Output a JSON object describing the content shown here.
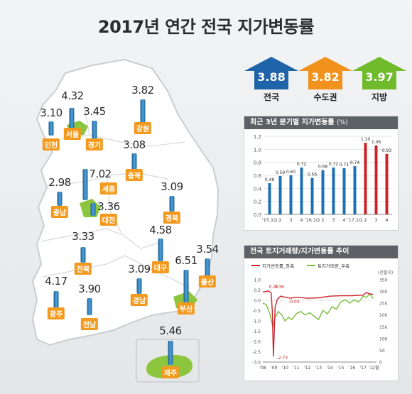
{
  "title": "2017년 연간 전국 지가변동률",
  "summary": [
    {
      "label": "전국",
      "value": "3.88",
      "color": "#1f64a8"
    },
    {
      "label": "수도권",
      "value": "3.82",
      "color": "#f0921c"
    },
    {
      "label": "지방",
      "value": "3.97",
      "color": "#6fbb2b"
    }
  ],
  "regions": [
    {
      "name": "서울",
      "value": "4.32"
    },
    {
      "name": "인천",
      "value": "3.10"
    },
    {
      "name": "경기",
      "value": "3.45"
    },
    {
      "name": "강원",
      "value": "3.82"
    },
    {
      "name": "충북",
      "value": "3.08"
    },
    {
      "name": "세종",
      "value": "7.02"
    },
    {
      "name": "충남",
      "value": "2.98"
    },
    {
      "name": "대전",
      "value": "3.36"
    },
    {
      "name": "경북",
      "value": "3.09"
    },
    {
      "name": "전북",
      "value": "3.33"
    },
    {
      "name": "대구",
      "value": "4.58"
    },
    {
      "name": "울산",
      "value": "3.54"
    },
    {
      "name": "경남",
      "value": "3.09"
    },
    {
      "name": "부산",
      "value": "6.51"
    },
    {
      "name": "광주",
      "value": "4.17"
    },
    {
      "name": "전남",
      "value": "3.90"
    },
    {
      "name": "제주",
      "value": "5.46"
    }
  ],
  "quarterly_panel": {
    "header": "최근 3년 분기별 지가변동률",
    "unit": "(%)"
  },
  "trend_panel": {
    "header": "전국 토지거래량/지가변동률 추이"
  },
  "chart_data": [
    {
      "type": "bar",
      "title": "최근 3년 분기별 지가변동률 (%)",
      "categories": [
        "'15.1Q",
        "2",
        "3",
        "4",
        "'16.1Q",
        "2",
        "3",
        "4",
        "'17.1Q",
        "2",
        "3",
        "4"
      ],
      "values": [
        0.48,
        0.59,
        0.6,
        0.72,
        0.56,
        0.68,
        0.72,
        0.71,
        0.74,
        1.1,
        1.06,
        0.93
      ],
      "value_labels": [
        "0.48",
        "0.59",
        "0.60",
        "0.72",
        "0.56",
        "0.68",
        "0.72",
        "0.71",
        "0.74",
        "1.10",
        "1.06",
        "0.93"
      ],
      "bar_colors": [
        "#1f6fb5",
        "#1f6fb5",
        "#1f6fb5",
        "#1f6fb5",
        "#1f6fb5",
        "#1f6fb5",
        "#1f6fb5",
        "#1f6fb5",
        "#1f6fb5",
        "#c8242b",
        "#c8242b",
        "#c8242b"
      ],
      "ylim": [
        0,
        1.2
      ],
      "yticks": [
        "0.0",
        "0.2",
        "0.4",
        "0.6",
        "0.8",
        "1.0",
        "1.2"
      ],
      "grid": true
    },
    {
      "type": "line",
      "title": "전국 토지거래량/지가변동률 추이",
      "series": [
        {
          "name": "지가변동률_좌축",
          "color": "#c8242b",
          "axis": "left",
          "x": [
            2008.0,
            2008.5,
            2008.75,
            2008.85,
            2008.95,
            2009.1,
            2009.3,
            2009.6,
            2010.0,
            2010.5,
            2011.0,
            2012.0,
            2013.0,
            2014.0,
            2015.0,
            2016.0,
            2016.5,
            2017.0,
            2017.3,
            2017.5,
            2017.7,
            2017.9
          ],
          "y": [
            0.4,
            0.45,
            0.36,
            -0.5,
            -2.73,
            -0.35,
            0.05,
            0.2,
            0.15,
            0.1,
            0.15,
            0.1,
            0.12,
            0.2,
            0.22,
            0.22,
            0.24,
            0.25,
            0.38,
            0.32,
            0.3,
            0.3
          ]
        },
        {
          "name": "토지거래량_우축",
          "color": "#79be3a",
          "axis": "right",
          "x": [
            2008.0,
            2008.3,
            2008.6,
            2008.9,
            2009.1,
            2009.4,
            2009.7,
            2010.0,
            2010.3,
            2010.6,
            2011.0,
            2011.4,
            2011.8,
            2012.2,
            2012.6,
            2013.0,
            2013.4,
            2013.8,
            2014.2,
            2014.6,
            2015.0,
            2015.4,
            2015.8,
            2016.2,
            2016.6,
            2017.0,
            2017.3,
            2017.6,
            2017.9
          ],
          "y": [
            250,
            245,
            210,
            150,
            190,
            215,
            200,
            175,
            190,
            180,
            205,
            215,
            200,
            210,
            195,
            180,
            220,
            205,
            235,
            225,
            255,
            265,
            250,
            265,
            255,
            280,
            275,
            290,
            270
          ]
        }
      ],
      "annotations": [
        "0.32",
        "0.36",
        "-2.73",
        "-0.03"
      ],
      "y_left": {
        "ticks": [
          "1.0",
          "0.5",
          "0.0",
          "-0.5",
          "-1.0",
          "-1.5",
          "-2.0",
          "-2.5",
          "-3.0"
        ],
        "lim": [
          -3.0,
          1.0
        ]
      },
      "y_right": {
        "label": "(천필지)",
        "ticks": [
          "350",
          "300",
          "250",
          "200",
          "150",
          "100",
          "50",
          "0"
        ],
        "lim": [
          0,
          350
        ]
      },
      "x_ticks": [
        "'08",
        "'09",
        "'10",
        "'11",
        "'12",
        "'13",
        "'14",
        "'15",
        "'16",
        "'17",
        "'12월"
      ],
      "xlim": [
        2008,
        2018.2
      ]
    }
  ]
}
